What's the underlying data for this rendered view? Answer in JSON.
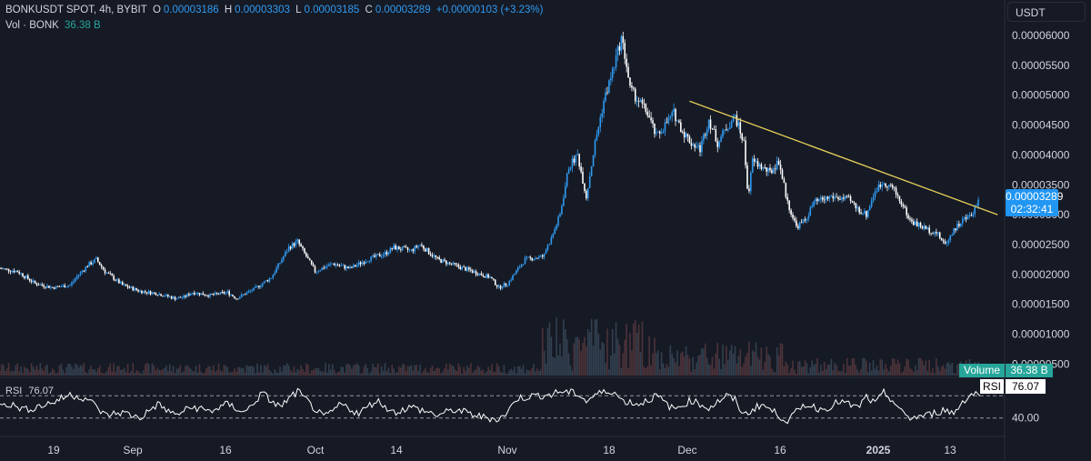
{
  "legend": {
    "symbol": "BONKUSDT SPOT, 4h, BYBIT",
    "o_label": "O",
    "o_value": "0.00003186",
    "h_label": "H",
    "h_value": "0.00003303",
    "l_label": "L",
    "l_value": "0.00003185",
    "c_label": "C",
    "c_value": "0.00003289",
    "change": "+0.00000103 (+3.23%)",
    "vol_label": "Vol · BONK",
    "vol_value": "36.38 B"
  },
  "currency_button": "USDT",
  "last_price": "0.00003289",
  "countdown": "02:32:41",
  "volume_tag_label": "Volume",
  "volume_tag_value": "36.38 B",
  "rsi_tag_label": "RSI",
  "rsi_tag_value": "76.07",
  "rsi_legend_label": "RSI",
  "rsi_legend_value": "76.07",
  "rsi_axis_label": "40.00",
  "colors": {
    "background": "#161a25",
    "candle_up": "#2f9bf2",
    "candle_down": "#ffffff",
    "trendline": "#e5cf5c",
    "volume": "#5a3a3e",
    "rsi_line": "#ffffff",
    "label_blue": "#2196f3",
    "label_green": "#26a69a"
  },
  "chart_data": {
    "type": "candlestick",
    "interval": "4h",
    "y_axis": {
      "min": 2.3e-06,
      "max": 6.3e-06,
      "ticks": [
        "0.00006000",
        "0.00005500",
        "0.00005000",
        "0.00004500",
        "0.00004000",
        "0.00003500",
        "0.00003000",
        "0.00002500",
        "0.00002000",
        "0.00001500",
        "0.00001000",
        "0.00000500"
      ]
    },
    "x_ticks": [
      "19",
      "Sep",
      "16",
      "Oct",
      "14",
      "Nov",
      "18",
      "Dec",
      "16",
      "2025",
      "13"
    ],
    "close_path": [
      [
        0,
        2.1e-05
      ],
      [
        2,
        2.05e-05
      ],
      [
        4,
        1.85e-05
      ],
      [
        6,
        1.78e-05
      ],
      [
        8,
        1.82e-05
      ],
      [
        9,
        2e-05
      ],
      [
        10,
        2.15e-05
      ],
      [
        11,
        2.25e-05
      ],
      [
        12,
        2.05e-05
      ],
      [
        14,
        1.82e-05
      ],
      [
        16,
        1.72e-05
      ],
      [
        18,
        1.68e-05
      ],
      [
        20,
        1.6e-05
      ],
      [
        21,
        1.62e-05
      ],
      [
        22,
        1.7e-05
      ],
      [
        24,
        1.65e-05
      ],
      [
        26,
        1.7e-05
      ],
      [
        27,
        1.6e-05
      ],
      [
        29,
        1.75e-05
      ],
      [
        31,
        1.95e-05
      ],
      [
        32,
        2.2e-05
      ],
      [
        33,
        2.45e-05
      ],
      [
        34,
        2.55e-05
      ],
      [
        35,
        2.3e-05
      ],
      [
        36,
        2.05e-05
      ],
      [
        38,
        2.18e-05
      ],
      [
        40,
        2.1e-05
      ],
      [
        42,
        2.25e-05
      ],
      [
        44,
        2.35e-05
      ],
      [
        45,
        2.45e-05
      ],
      [
        47,
        2.4e-05
      ],
      [
        48,
        2.5e-05
      ],
      [
        50,
        2.25e-05
      ],
      [
        52,
        2.15e-05
      ],
      [
        54,
        2.05e-05
      ],
      [
        56,
        1.95e-05
      ],
      [
        57,
        1.78e-05
      ],
      [
        58,
        1.85e-05
      ],
      [
        60,
        2.25e-05
      ],
      [
        62,
        2.3e-05
      ],
      [
        63,
        2.6e-05
      ],
      [
        64,
        3e-05
      ],
      [
        65,
        3.8e-05
      ],
      [
        66,
        4e-05
      ],
      [
        67,
        3.3e-05
      ],
      [
        68,
        4.2e-05
      ],
      [
        69,
        4.9e-05
      ],
      [
        70,
        5.4e-05
      ],
      [
        71,
        5.95e-05
      ],
      [
        71.5,
        5.6e-05
      ],
      [
        72,
        5.1e-05
      ],
      [
        74,
        4.7e-05
      ],
      [
        75,
        4.3e-05
      ],
      [
        76,
        4.5e-05
      ],
      [
        77,
        4.7e-05
      ],
      [
        78,
        4.4e-05
      ],
      [
        79,
        4.2e-05
      ],
      [
        80,
        4.1e-05
      ],
      [
        81,
        4.6e-05
      ],
      [
        82,
        4.2e-05
      ],
      [
        83,
        4.45e-05
      ],
      [
        84,
        4.65e-05
      ],
      [
        85,
        4.2e-05
      ],
      [
        85.5,
        3.3e-05
      ],
      [
        86,
        3.9e-05
      ],
      [
        88,
        3.7e-05
      ],
      [
        89,
        3.9e-05
      ],
      [
        90,
        3.2e-05
      ],
      [
        91,
        2.8e-05
      ],
      [
        92,
        2.9e-05
      ],
      [
        93,
        3.2e-05
      ],
      [
        95,
        3.3e-05
      ],
      [
        97,
        3.25e-05
      ],
      [
        98,
        3.1e-05
      ],
      [
        99,
        3e-05
      ],
      [
        100,
        3.4e-05
      ],
      [
        101,
        3.55e-05
      ],
      [
        102,
        3.45e-05
      ],
      [
        103,
        3.2e-05
      ],
      [
        104,
        2.9e-05
      ],
      [
        106,
        2.75e-05
      ],
      [
        107,
        2.7e-05
      ],
      [
        108,
        2.5e-05
      ],
      [
        109,
        2.75e-05
      ],
      [
        110,
        2.9e-05
      ],
      [
        111,
        3e-05
      ],
      [
        112,
        3.29e-05
      ]
    ],
    "trendline": [
      [
        4.9e-05,
        78.8
      ],
      [
        3e-05,
        114.0
      ]
    ],
    "rsi_path": [
      [
        0,
        60
      ],
      [
        3,
        45
      ],
      [
        6,
        58
      ],
      [
        8,
        72
      ],
      [
        10,
        65
      ],
      [
        12,
        35
      ],
      [
        14,
        40
      ],
      [
        16,
        30
      ],
      [
        18,
        55
      ],
      [
        20,
        35
      ],
      [
        22,
        50
      ],
      [
        24,
        42
      ],
      [
        26,
        55
      ],
      [
        28,
        40
      ],
      [
        30,
        75
      ],
      [
        31,
        60
      ],
      [
        32,
        50
      ],
      [
        34,
        78
      ],
      [
        35,
        62
      ],
      [
        37,
        30
      ],
      [
        39,
        55
      ],
      [
        41,
        38
      ],
      [
        43,
        62
      ],
      [
        45,
        40
      ],
      [
        47,
        50
      ],
      [
        50,
        35
      ],
      [
        52,
        45
      ],
      [
        55,
        32
      ],
      [
        57,
        28
      ],
      [
        58,
        40
      ],
      [
        59,
        65
      ],
      [
        61,
        70
      ],
      [
        63,
        72
      ],
      [
        64,
        78
      ],
      [
        66,
        74
      ],
      [
        67,
        60
      ],
      [
        68,
        72
      ],
      [
        70,
        80
      ],
      [
        71,
        62
      ],
      [
        73,
        55
      ],
      [
        75,
        70
      ],
      [
        77,
        45
      ],
      [
        79,
        62
      ],
      [
        81,
        48
      ],
      [
        83,
        70
      ],
      [
        84,
        62
      ],
      [
        85,
        35
      ],
      [
        87,
        55
      ],
      [
        89,
        35
      ],
      [
        90,
        25
      ],
      [
        92,
        55
      ],
      [
        94,
        45
      ],
      [
        96,
        60
      ],
      [
        98,
        48
      ],
      [
        99,
        68
      ],
      [
        100,
        55
      ],
      [
        101,
        75
      ],
      [
        102,
        62
      ],
      [
        103,
        40
      ],
      [
        104,
        30
      ],
      [
        106,
        35
      ],
      [
        108,
        45
      ],
      [
        109,
        38
      ],
      [
        110,
        60
      ],
      [
        111,
        72
      ],
      [
        112,
        76
      ]
    ],
    "rsi_levels": [
      70,
      30
    ]
  }
}
